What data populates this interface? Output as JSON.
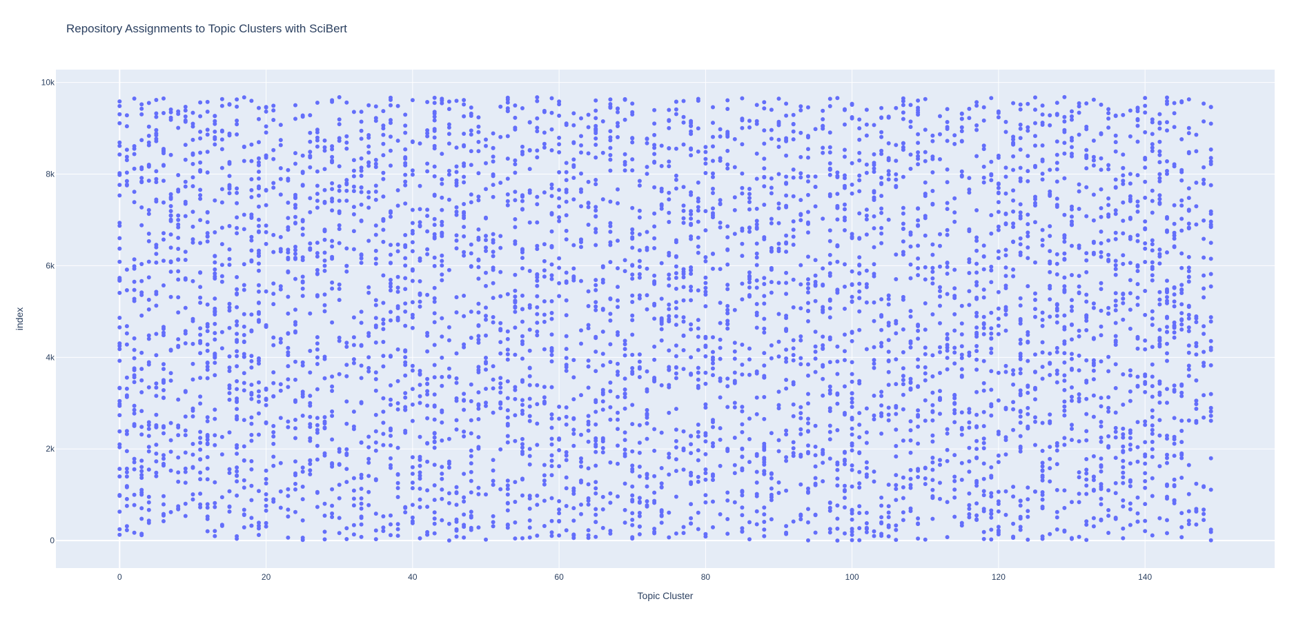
{
  "chart_data": {
    "type": "scatter",
    "title": "Repository Assignments to Topic Clusters with SciBert",
    "xlabel": "Topic Cluster",
    "ylabel": "index",
    "xlim": [
      -8.7,
      157.7
    ],
    "ylim": [
      -600,
      10280
    ],
    "x_ticks": [
      0,
      20,
      40,
      60,
      80,
      100,
      120,
      140
    ],
    "x_tick_labels": [
      "0",
      "20",
      "40",
      "60",
      "80",
      "100",
      "120",
      "140"
    ],
    "y_ticks": [
      0,
      2000,
      4000,
      6000,
      8000,
      10000
    ],
    "y_tick_labels": [
      "0",
      "2k",
      "4k",
      "6k",
      "8k",
      "10k"
    ],
    "grid": true,
    "plot_background": "#e5ecf6",
    "grid_color": "#ffffff",
    "marker_color": "#636efa",
    "cluster_min": 0,
    "cluster_max": 149,
    "index_min": 0,
    "index_max": 9680,
    "n_points": 9681,
    "note": "Each of ~9681 repositories (index 0-9680) is assigned to exactly one of 150 topic clusters (0-149); points are densely scattered across all clusters and indices."
  }
}
